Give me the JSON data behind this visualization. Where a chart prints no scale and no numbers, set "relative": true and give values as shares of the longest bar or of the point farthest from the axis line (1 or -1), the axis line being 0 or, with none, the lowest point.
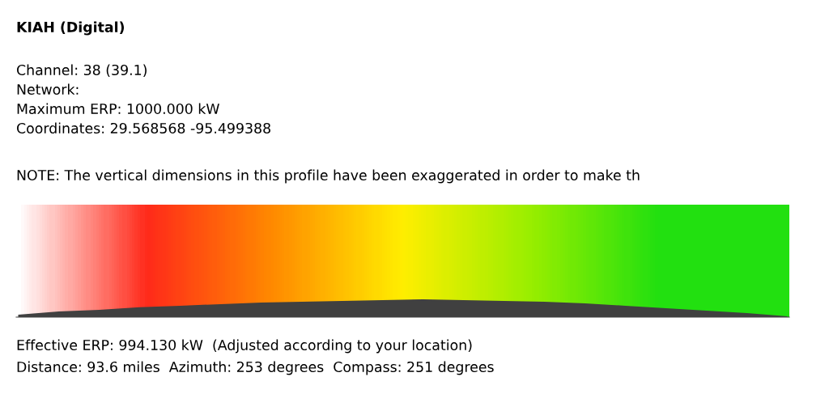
{
  "chart_data": {
    "type": "area",
    "title": "KIAH (Digital)",
    "relative": true,
    "annotations": [
      "Channel: 38 (39.1)",
      "Network:",
      "Maximum ERP: 1000.000 kW",
      "Coordinates: 29.568568 -95.499388",
      "NOTE: The vertical dimensions in this profile have been exaggerated in order to make th",
      "Effective ERP: 994.130 kW  (Adjusted according to your location)",
      "Distance: 93.6 miles  Azimuth: 253 degrees  Compass: 251 degrees"
    ],
    "categories": [
      null,
      null,
      null,
      null,
      null,
      null,
      null,
      null,
      null,
      null,
      null,
      null,
      null,
      null,
      null,
      null,
      null,
      null,
      null,
      null
    ],
    "series": [
      {
        "color": "#404040",
        "values": [
          0.14,
          0.32,
          0.41,
          0.55,
          0.64,
          0.73,
          0.82,
          0.86,
          0.91,
          0.95,
          1,
          0.95,
          0.91,
          0.86,
          0.77,
          0.64,
          0.5,
          0.36,
          0.23,
          0.05
        ]
      }
    ]
  }
}
